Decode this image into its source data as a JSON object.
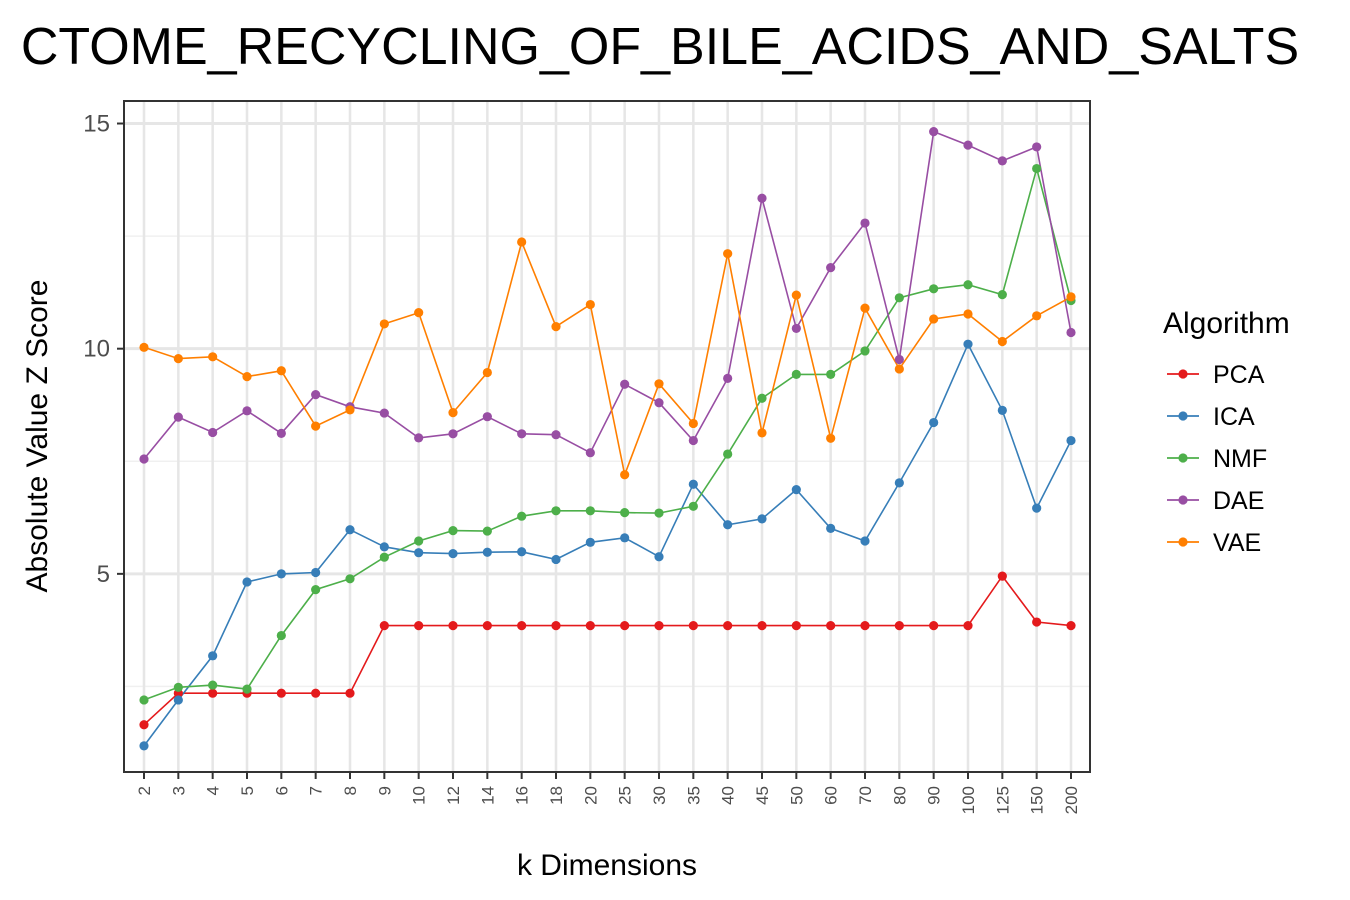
{
  "chart_data": {
    "type": "line",
    "title": "CTOME_RECYCLING_OF_BILE_ACIDS_AND_SALTS",
    "xlabel": "k Dimensions",
    "ylabel": "Absolute Value Z Score",
    "categories": [
      "2",
      "3",
      "4",
      "5",
      "6",
      "7",
      "8",
      "9",
      "10",
      "12",
      "14",
      "16",
      "18",
      "20",
      "25",
      "30",
      "35",
      "40",
      "45",
      "50",
      "60",
      "70",
      "80",
      "90",
      "100",
      "125",
      "150",
      "200"
    ],
    "y_ticks": [
      5,
      10,
      15
    ],
    "ylim": [
      0.6,
      15.5
    ],
    "grid": true,
    "legend": {
      "title": "Algorithm",
      "placement": "right"
    },
    "series": [
      {
        "name": "PCA",
        "color": "#e41a1c",
        "values": [
          1.65,
          2.35,
          2.35,
          2.35,
          2.35,
          2.35,
          2.35,
          3.85,
          3.85,
          3.85,
          3.85,
          3.85,
          3.85,
          3.85,
          3.85,
          3.85,
          3.85,
          3.85,
          3.85,
          3.85,
          3.85,
          3.85,
          3.85,
          3.85,
          3.85,
          4.95,
          3.93,
          3.85
        ]
      },
      {
        "name": "ICA",
        "color": "#377eb8",
        "values": [
          1.18,
          2.2,
          3.18,
          4.82,
          5.0,
          5.03,
          5.98,
          5.6,
          5.47,
          5.45,
          5.48,
          5.49,
          5.32,
          5.7,
          5.8,
          5.38,
          6.99,
          6.09,
          6.22,
          6.87,
          6.01,
          5.73,
          7.02,
          8.36,
          10.1,
          8.63,
          6.46,
          7.96
        ]
      },
      {
        "name": "NMF",
        "color": "#4daf4a",
        "values": [
          2.2,
          2.48,
          2.53,
          2.44,
          3.63,
          4.65,
          4.89,
          5.37,
          5.73,
          5.96,
          5.95,
          6.28,
          6.4,
          6.4,
          6.36,
          6.35,
          6.5,
          7.66,
          8.9,
          9.43,
          9.43,
          9.95,
          11.13,
          11.33,
          11.42,
          11.2,
          14.0,
          11.07
        ]
      },
      {
        "name": "DAE",
        "color": "#984ea3",
        "values": [
          7.55,
          8.48,
          8.14,
          8.62,
          8.12,
          8.98,
          8.71,
          8.57,
          8.02,
          8.11,
          8.49,
          8.11,
          8.09,
          7.69,
          9.21,
          8.8,
          7.96,
          9.34,
          13.34,
          10.45,
          11.8,
          12.79,
          9.76,
          14.82,
          14.52,
          14.17,
          14.48,
          10.36
        ]
      },
      {
        "name": "VAE",
        "color": "#ff7f00",
        "values": [
          10.03,
          9.78,
          9.82,
          9.38,
          9.51,
          8.28,
          8.64,
          10.55,
          10.8,
          8.58,
          9.47,
          12.37,
          10.49,
          10.98,
          7.2,
          9.22,
          8.34,
          12.11,
          8.13,
          11.19,
          8.01,
          10.9,
          9.55,
          10.66,
          10.77,
          10.16,
          10.73,
          11.15
        ]
      }
    ]
  }
}
